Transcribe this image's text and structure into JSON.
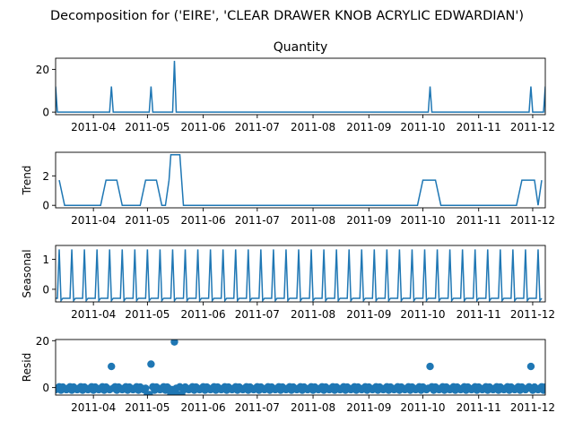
{
  "suptitle": "Decomposition for ('EIRE', 'CLEAR DRAWER KNOB ACRYLIC EDWARDIAN')",
  "colors": {
    "line": "#1f77b4",
    "zero_line": "#000000",
    "axis": "#000000"
  },
  "chart_data": [
    {
      "type": "line",
      "panel": "observed",
      "title": "Quantity",
      "ylabel": "",
      "ylim": [
        -1.2,
        25.2
      ],
      "yticks": [
        0,
        20
      ],
      "x_range": [
        "2011-03-11",
        "2011-12-08"
      ],
      "x_ticks": [
        "2011-04",
        "2011-05",
        "2011-06",
        "2011-07",
        "2011-08",
        "2011-09",
        "2011-10",
        "2011-11",
        "2011-12"
      ],
      "baseline": 0,
      "spikes": [
        {
          "x": "2011-03-11",
          "y": 12
        },
        {
          "x": "2011-04-11",
          "y": 12
        },
        {
          "x": "2011-05-03",
          "y": 12
        },
        {
          "x": "2011-05-16",
          "y": 24
        },
        {
          "x": "2011-10-05",
          "y": 12
        },
        {
          "x": "2011-11-30",
          "y": 12
        },
        {
          "x": "2011-12-08",
          "y": 12
        }
      ]
    },
    {
      "type": "line",
      "panel": "trend",
      "title": "",
      "ylabel": "Trend",
      "ylim": [
        -0.17,
        3.6
      ],
      "yticks": [
        0,
        2
      ],
      "x_range": [
        "2011-03-11",
        "2011-12-08"
      ],
      "x_ticks": [
        "2011-04",
        "2011-05",
        "2011-06",
        "2011-07",
        "2011-08",
        "2011-09",
        "2011-10",
        "2011-11",
        "2011-12"
      ],
      "points": [
        {
          "x": "2011-03-13",
          "y": 1.71
        },
        {
          "x": "2011-03-16",
          "y": 0
        },
        {
          "x": "2011-04-05",
          "y": 0
        },
        {
          "x": "2011-04-08",
          "y": 1.71
        },
        {
          "x": "2011-04-14",
          "y": 1.71
        },
        {
          "x": "2011-04-17",
          "y": 0
        },
        {
          "x": "2011-04-27",
          "y": 0
        },
        {
          "x": "2011-04-30",
          "y": 1.71
        },
        {
          "x": "2011-05-06",
          "y": 1.71
        },
        {
          "x": "2011-05-09",
          "y": 0
        },
        {
          "x": "2011-05-11",
          "y": 0
        },
        {
          "x": "2011-05-13",
          "y": 1.71
        },
        {
          "x": "2011-05-14",
          "y": 3.43
        },
        {
          "x": "2011-05-19",
          "y": 3.43
        },
        {
          "x": "2011-05-21",
          "y": 0
        },
        {
          "x": "2011-09-28",
          "y": 0
        },
        {
          "x": "2011-10-01",
          "y": 1.71
        },
        {
          "x": "2011-10-08",
          "y": 1.71
        },
        {
          "x": "2011-10-11",
          "y": 0
        },
        {
          "x": "2011-11-22",
          "y": 0
        },
        {
          "x": "2011-11-25",
          "y": 1.71
        },
        {
          "x": "2011-12-02",
          "y": 1.71
        },
        {
          "x": "2011-12-04",
          "y": 0
        },
        {
          "x": "2011-12-06",
          "y": 1.71
        }
      ]
    },
    {
      "type": "line",
      "panel": "seasonal",
      "title": "",
      "ylabel": "Seasonal",
      "ylim": [
        -0.42,
        1.46
      ],
      "yticks": [
        0,
        1
      ],
      "x_range": [
        "2011-03-11",
        "2011-12-08"
      ],
      "x_ticks": [
        "2011-04",
        "2011-05",
        "2011-06",
        "2011-07",
        "2011-08",
        "2011-09",
        "2011-10",
        "2011-11",
        "2011-12"
      ],
      "period_days": 7,
      "first_peak": "2011-03-13",
      "peak_value": 1.33,
      "low_value": -0.3,
      "dip_value": -0.38
    },
    {
      "type": "scatter",
      "panel": "resid",
      "title": "",
      "ylabel": "Resid",
      "ylim": [
        -3.2,
        20.5
      ],
      "yticks": [
        0,
        20
      ],
      "x_range": [
        "2011-03-11",
        "2011-12-08"
      ],
      "x_ticks": [
        "2011-04",
        "2011-05",
        "2011-06",
        "2011-07",
        "2011-08",
        "2011-09",
        "2011-10",
        "2011-11",
        "2011-12"
      ],
      "baseline": 0,
      "typical_values": [
        -0.9,
        -0.3,
        0.3,
        -1.1,
        0.2,
        -0.5
      ],
      "outliers": [
        {
          "x": "2011-04-11",
          "y": 9
        },
        {
          "x": "2011-05-03",
          "y": 10
        },
        {
          "x": "2011-05-16",
          "y": 19.5
        },
        {
          "x": "2011-10-05",
          "y": 9
        },
        {
          "x": "2011-11-30",
          "y": 9
        }
      ],
      "low_cluster": [
        {
          "x": "2011-05-01",
          "y": -3
        },
        {
          "x": "2011-05-02",
          "y": -3
        },
        {
          "x": "2011-05-14",
          "y": -3
        },
        {
          "x": "2011-05-16",
          "y": -3
        },
        {
          "x": "2011-05-18",
          "y": -3
        },
        {
          "x": "2011-05-20",
          "y": -3
        }
      ]
    }
  ]
}
